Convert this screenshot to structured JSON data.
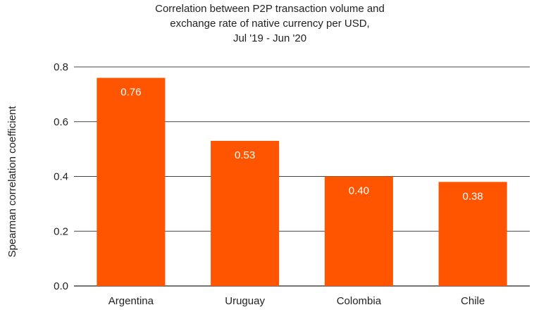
{
  "chart_data": {
    "type": "bar",
    "title_lines": [
      "Correlation between P2P transaction volume and",
      "exchange rate of native currency per USD,",
      "Jul '19 - Jun '20"
    ],
    "xlabel": "",
    "ylabel": "Spearman correlation coefficient",
    "categories": [
      "Argentina",
      "Uruguay",
      "Colombia",
      "Chile"
    ],
    "values": [
      0.76,
      0.53,
      0.4,
      0.38
    ],
    "data_labels": [
      "0.76",
      "0.53",
      "0.40",
      "0.38"
    ],
    "ylim": [
      0,
      0.8
    ],
    "yticks": [
      0.0,
      0.2,
      0.4,
      0.6,
      0.8
    ],
    "ytick_labels": [
      "0.0",
      "0.2",
      "0.4",
      "0.6",
      "0.8"
    ],
    "grid": true,
    "legend": "none",
    "bar_color": "#ff5500"
  }
}
